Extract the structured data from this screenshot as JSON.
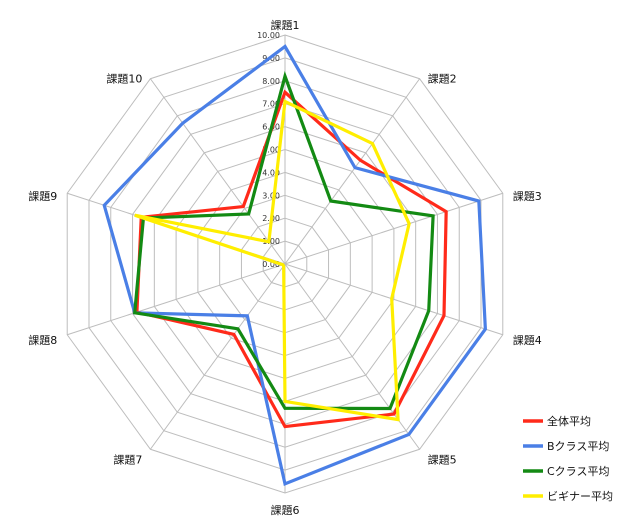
{
  "chart_data": {
    "type": "radar",
    "categories": [
      "課題1",
      "課題2",
      "課題3",
      "課題4",
      "課題5",
      "課題6",
      "課題7",
      "課題8",
      "課題9",
      "課題10"
    ],
    "rlim": [
      0,
      10
    ],
    "ticks": [
      "0.00",
      "1.00",
      "2.00",
      "3.00",
      "4.00",
      "5.00",
      "6.00",
      "7.00",
      "8.00",
      "9.00",
      "10.00"
    ],
    "grid": true,
    "legend_position": "bottom-right",
    "series": [
      {
        "name": "全体平均",
        "color": "#ff2a1a",
        "values": [
          7.5,
          5.6,
          7.4,
          7.3,
          8.1,
          7.1,
          3.8,
          6.8,
          6.6,
          3.1
        ]
      },
      {
        "name": "Bクラス平均",
        "color": "#4a7fe6",
        "values": [
          9.5,
          5.2,
          8.9,
          9.2,
          9.2,
          9.6,
          2.8,
          6.9,
          8.3,
          7.6
        ]
      },
      {
        "name": "Cクラス平均",
        "color": "#138a13",
        "values": [
          8.2,
          3.4,
          6.8,
          6.6,
          7.8,
          6.3,
          3.5,
          6.9,
          6.5,
          2.7
        ]
      },
      {
        "name": "ビギナー平均",
        "color": "#ffee00",
        "values": [
          7.1,
          6.5,
          5.7,
          4.9,
          8.4,
          6.0,
          0.1,
          0.1,
          6.9,
          1.2
        ]
      }
    ]
  }
}
